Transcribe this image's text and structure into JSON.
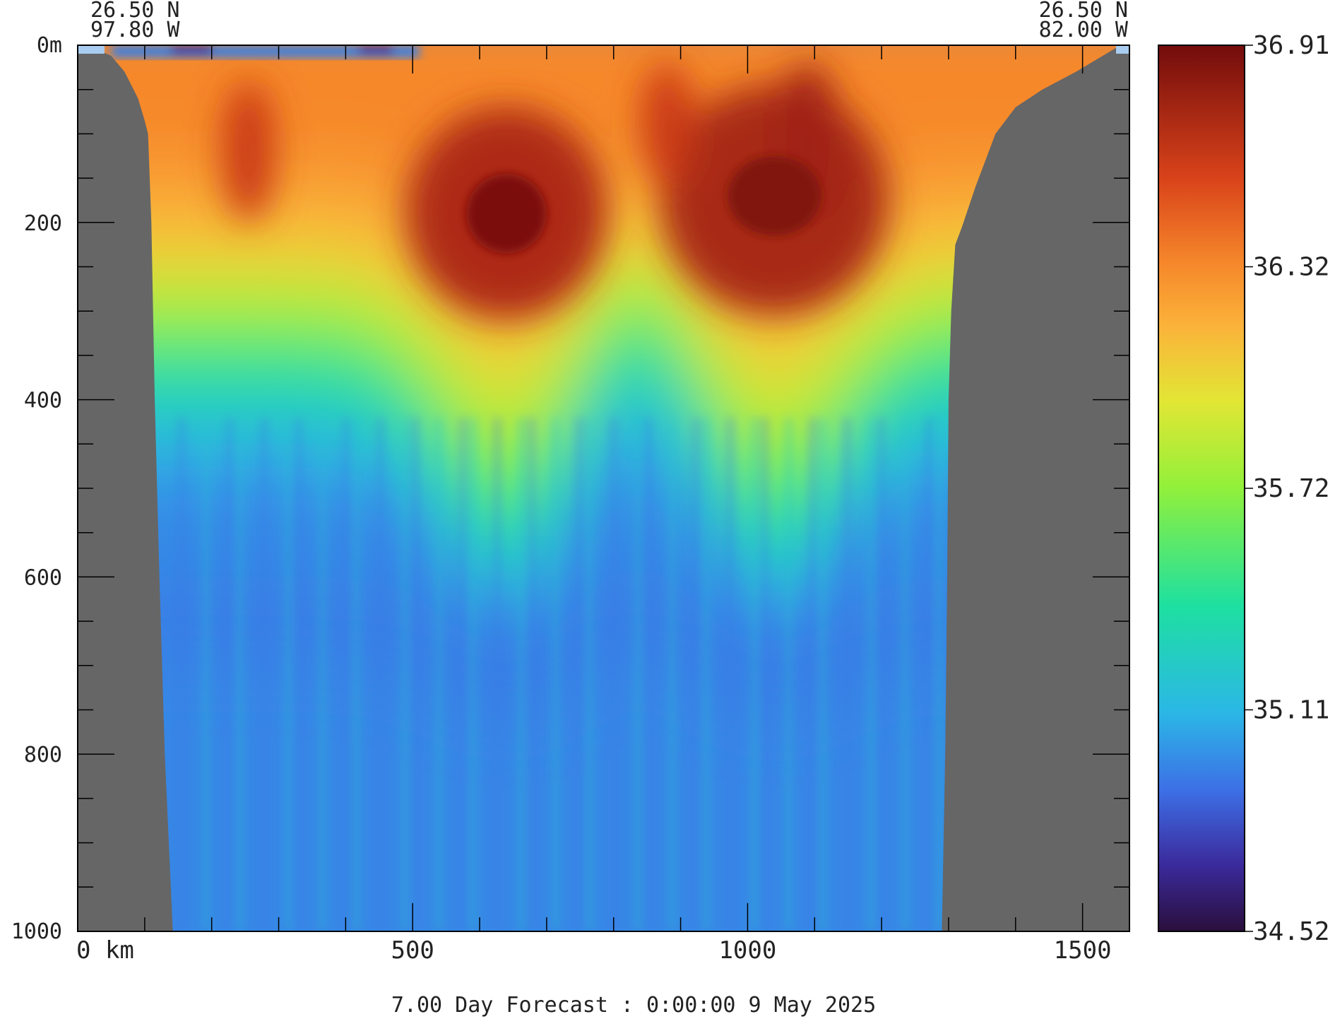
{
  "chart_data": {
    "type": "heatmap",
    "description_quantity": "salinity section",
    "corner_labels": {
      "left": {
        "lat": "26.50 N",
        "lon": "97.80 W"
      },
      "right": {
        "lat": "26.50 N",
        "lon": "82.00 W"
      }
    },
    "x_axis": {
      "min": 0,
      "max": 1570,
      "unit": "km",
      "major_ticks": [
        0,
        500,
        1000,
        1500
      ],
      "minor_step": 100,
      "tick_labels": [
        "0 km",
        "500",
        "1000",
        "1500"
      ]
    },
    "y_axis": {
      "min": 0,
      "max": 1000,
      "inverted": true,
      "major_ticks": [
        0,
        200,
        400,
        600,
        800,
        1000
      ],
      "minor_step": 50,
      "tick_labels": [
        "0m",
        "200",
        "400",
        "600",
        "800",
        "1000"
      ]
    },
    "colorbar": {
      "min": 34.52,
      "max": 36.91,
      "tick_labels": [
        "36.91",
        "36.32",
        "35.72",
        "35.11",
        "34.52"
      ],
      "stops": [
        {
          "value": 34.52,
          "color": "#2a0f3c"
        },
        {
          "value": 34.7,
          "color": "#3b2a9c"
        },
        {
          "value": 34.9,
          "color": "#3d6fe6"
        },
        {
          "value": 35.11,
          "color": "#2bb7e6"
        },
        {
          "value": 35.4,
          "color": "#1ee0a0"
        },
        {
          "value": 35.72,
          "color": "#93f03a"
        },
        {
          "value": 35.95,
          "color": "#e2e635"
        },
        {
          "value": 36.15,
          "color": "#fbb33a"
        },
        {
          "value": 36.32,
          "color": "#f6882b"
        },
        {
          "value": 36.55,
          "color": "#d9431a"
        },
        {
          "value": 36.91,
          "color": "#720c0c"
        }
      ]
    },
    "land_color": "#666666",
    "surface_strip_color": "#a8cdf0",
    "bathymetry_depth_m": [
      [
        0,
        0
      ],
      [
        20,
        0
      ],
      [
        30,
        5
      ],
      [
        50,
        12
      ],
      [
        70,
        30
      ],
      [
        90,
        60
      ],
      [
        100,
        85
      ],
      [
        105,
        100
      ],
      [
        110,
        200
      ],
      [
        115,
        400
      ],
      [
        122,
        600
      ],
      [
        130,
        800
      ],
      [
        142,
        1000
      ],
      [
        1290,
        1000
      ],
      [
        1295,
        800
      ],
      [
        1298,
        600
      ],
      [
        1300,
        400
      ],
      [
        1304,
        300
      ],
      [
        1310,
        225
      ],
      [
        1320,
        205
      ],
      [
        1340,
        160
      ],
      [
        1370,
        100
      ],
      [
        1400,
        70
      ],
      [
        1440,
        50
      ],
      [
        1490,
        30
      ],
      [
        1530,
        12
      ],
      [
        1550,
        3
      ],
      [
        1570,
        0
      ]
    ],
    "field_features": [
      {
        "name": "surface-layer",
        "x_km": [
          90,
          1460
        ],
        "depth_m": [
          0,
          120
        ],
        "salinity": 36.35
      },
      {
        "name": "max-core-west",
        "x_km": 635,
        "depth_m": 190,
        "salinity": 36.88
      },
      {
        "name": "max-core-east",
        "x_km": 1040,
        "depth_m": 170,
        "salinity": 36.86
      },
      {
        "name": "deep-water",
        "depth_m": 800,
        "salinity": 34.95
      },
      {
        "name": "fresh-surface-patch",
        "x_km": [
          50,
          510
        ],
        "depth_m": [
          0,
          15
        ],
        "salinity": 34.8
      }
    ],
    "footer": "7.00 Day Forecast :  0:00:00   9 May 2025"
  }
}
